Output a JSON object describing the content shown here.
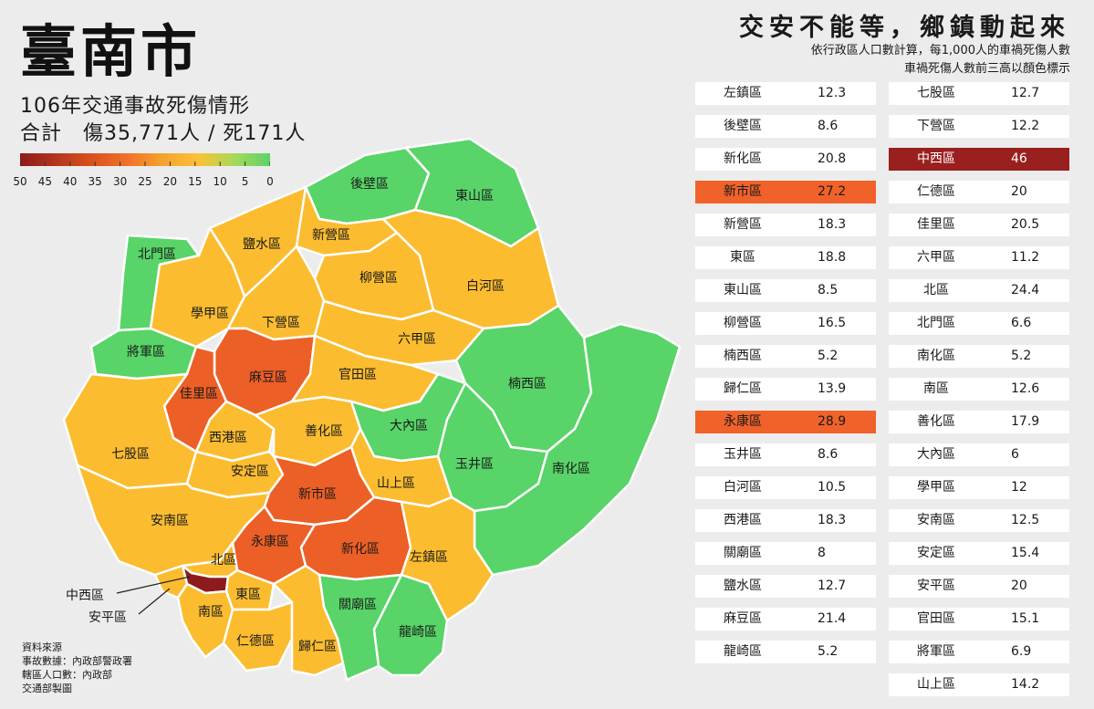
{
  "title": "臺南市",
  "subtitle": "106年交通事故死傷情形",
  "totals": "合計　傷35,771人 / 死171人",
  "legend": {
    "ticks": [
      "50",
      "45",
      "40",
      "35",
      "30",
      "25",
      "20",
      "15",
      "10",
      "5",
      "0"
    ],
    "colors": [
      "#8b1a1a",
      "#b3361d",
      "#d9511f",
      "#f0712a",
      "#f5a32f",
      "#fcc236",
      "#a6d95a",
      "#5cd268"
    ]
  },
  "headline": "交安不能等，鄉鎮動起來",
  "description_line1": "依行政區人口數計算，每1,000人的車禍死傷人數",
  "description_line2": "車禍死傷人數前三高以顏色標示",
  "table_left": [
    {
      "name": "左鎮區",
      "value": "12.3"
    },
    {
      "name": "後壁區",
      "value": "8.6"
    },
    {
      "name": "新化區",
      "value": "20.8"
    },
    {
      "name": "新市區",
      "value": "27.2",
      "highlight": "orange"
    },
    {
      "name": "新營區",
      "value": "18.3"
    },
    {
      "name": "東區",
      "value": "18.8"
    },
    {
      "name": "東山區",
      "value": "8.5"
    },
    {
      "name": "柳營區",
      "value": "16.5"
    },
    {
      "name": "楠西區",
      "value": "5.2"
    },
    {
      "name": "歸仁區",
      "value": "13.9"
    },
    {
      "name": "永康區",
      "value": "28.9",
      "highlight": "orange"
    },
    {
      "name": "玉井區",
      "value": "8.6"
    },
    {
      "name": "白河區",
      "value": "10.5"
    },
    {
      "name": "西港區",
      "value": "18.3"
    },
    {
      "name": "關廟區",
      "value": "8"
    },
    {
      "name": "鹽水區",
      "value": "12.7"
    },
    {
      "name": "麻豆區",
      "value": "21.4"
    },
    {
      "name": "龍崎區",
      "value": "5.2"
    }
  ],
  "table_right": [
    {
      "name": "七股區",
      "value": "12.7"
    },
    {
      "name": "下營區",
      "value": "12.2"
    },
    {
      "name": "中西區",
      "value": "46",
      "highlight": "red"
    },
    {
      "name": "仁德區",
      "value": "20"
    },
    {
      "name": "佳里區",
      "value": "20.5"
    },
    {
      "name": "六甲區",
      "value": "11.2"
    },
    {
      "name": "北區",
      "value": "24.4"
    },
    {
      "name": "北門區",
      "value": "6.6"
    },
    {
      "name": "南化區",
      "value": "5.2"
    },
    {
      "name": "南區",
      "value": "12.6"
    },
    {
      "name": "善化區",
      "value": "17.9"
    },
    {
      "name": "大內區",
      "value": "6"
    },
    {
      "name": "學甲區",
      "value": "12"
    },
    {
      "name": "安南區",
      "value": "12.5"
    },
    {
      "name": "安定區",
      "value": "15.4"
    },
    {
      "name": "安平區",
      "value": "20"
    },
    {
      "name": "官田區",
      "value": "15.1"
    },
    {
      "name": "將軍區",
      "value": "6.9"
    },
    {
      "name": "山上區",
      "value": "14.2"
    }
  ],
  "map_colors": {
    "green": "#58d468",
    "yellow": "#fbbc30",
    "orange": "#ec5f26",
    "dark": "#8e1b1b"
  },
  "regions": [
    {
      "id": "houbi",
      "name": "後壁區",
      "color": "green"
    },
    {
      "id": "dongshan",
      "name": "東山區",
      "color": "green"
    },
    {
      "id": "beimen",
      "name": "北門區",
      "color": "green"
    },
    {
      "id": "yanshui",
      "name": "鹽水區",
      "color": "yellow"
    },
    {
      "id": "xinying",
      "name": "新營區",
      "color": "yellow"
    },
    {
      "id": "liuying",
      "name": "柳營區",
      "color": "yellow"
    },
    {
      "id": "baihe",
      "name": "白河區",
      "color": "yellow"
    },
    {
      "id": "xuejia",
      "name": "學甲區",
      "color": "yellow"
    },
    {
      "id": "xiaying",
      "name": "下營區",
      "color": "yellow"
    },
    {
      "id": "liujia",
      "name": "六甲區",
      "color": "yellow"
    },
    {
      "id": "jiangjun",
      "name": "將軍區",
      "color": "green"
    },
    {
      "id": "madou",
      "name": "麻豆區",
      "color": "orange"
    },
    {
      "id": "jiali",
      "name": "佳里區",
      "color": "orange"
    },
    {
      "id": "guantian",
      "name": "官田區",
      "color": "yellow"
    },
    {
      "id": "nanxi",
      "name": "楠西區",
      "color": "green"
    },
    {
      "id": "qigu",
      "name": "七股區",
      "color": "yellow"
    },
    {
      "id": "xigang",
      "name": "西港區",
      "color": "yellow"
    },
    {
      "id": "shanhua",
      "name": "善化區",
      "color": "yellow"
    },
    {
      "id": "danei",
      "name": "大內區",
      "color": "green"
    },
    {
      "id": "yujing",
      "name": "玉井區",
      "color": "green"
    },
    {
      "id": "nanhua",
      "name": "南化區",
      "color": "green"
    },
    {
      "id": "anding",
      "name": "安定區",
      "color": "yellow"
    },
    {
      "id": "shanshang",
      "name": "山上區",
      "color": "yellow"
    },
    {
      "id": "xinshi",
      "name": "新市區",
      "color": "orange"
    },
    {
      "id": "annan",
      "name": "安南區",
      "color": "yellow"
    },
    {
      "id": "yongkang",
      "name": "永康區",
      "color": "orange"
    },
    {
      "id": "xinhua",
      "name": "新化區",
      "color": "orange"
    },
    {
      "id": "zuozhen",
      "name": "左鎮區",
      "color": "yellow"
    },
    {
      "id": "beiqu",
      "name": "北區",
      "color": "yellow"
    },
    {
      "id": "zhongxi",
      "name": "",
      "color": "dark"
    },
    {
      "id": "anping",
      "name": "",
      "color": "yellow"
    },
    {
      "id": "dongqu",
      "name": "東區",
      "color": "yellow"
    },
    {
      "id": "nanqu",
      "name": "南區",
      "color": "yellow"
    },
    {
      "id": "rende",
      "name": "仁德區",
      "color": "yellow"
    },
    {
      "id": "guiren",
      "name": "歸仁區",
      "color": "yellow"
    },
    {
      "id": "guanmiao",
      "name": "關廟區",
      "color": "green"
    },
    {
      "id": "longqi",
      "name": "龍崎區",
      "color": "green"
    }
  ],
  "callouts": {
    "zhongxi": "中西區",
    "anping": "安平區"
  },
  "source": [
    "資料來源",
    "事故數據：內政部警政署",
    "轄區人口數：內政部",
    "交通部製圖"
  ]
}
